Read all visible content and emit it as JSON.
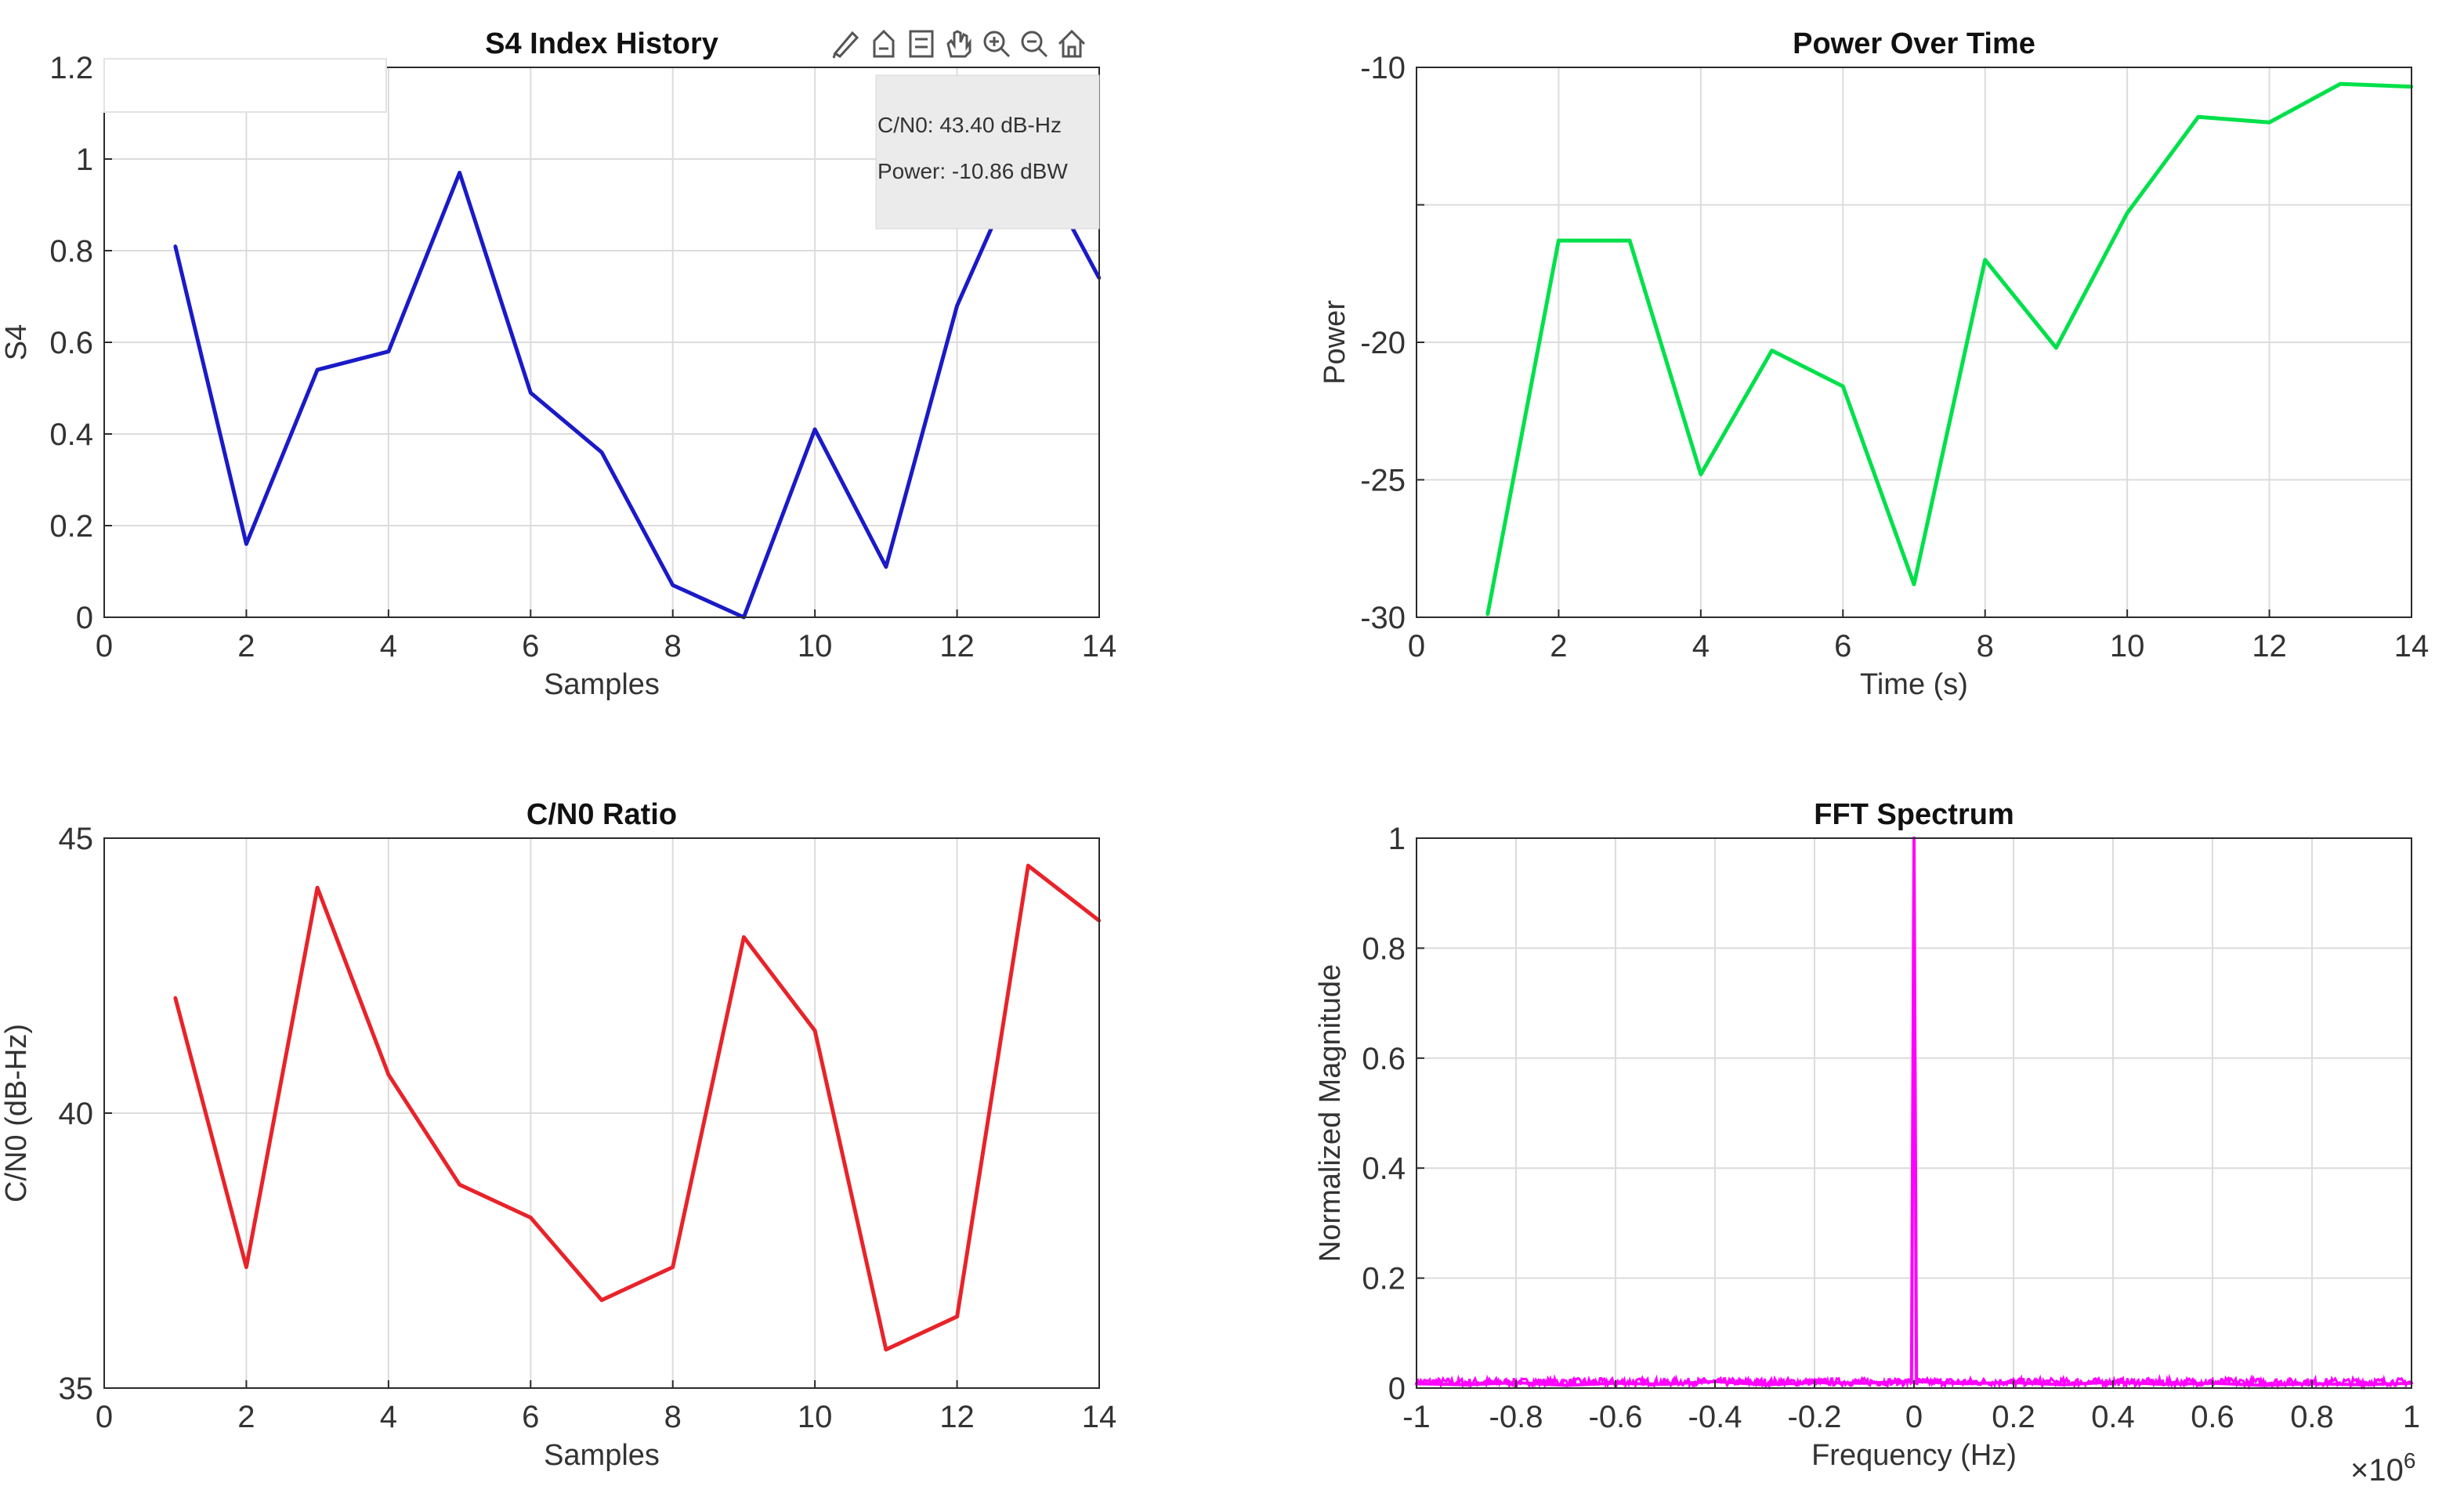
{
  "datatip": {
    "cn0": "C/N0: 43.40 dB-Hz",
    "power": "Power: -10.86 dBW"
  },
  "toolbar": {
    "icons": [
      "brush-icon",
      "data-tips-icon",
      "legend-icon",
      "pan-icon",
      "zoom-in-icon",
      "zoom-out-icon",
      "home-icon"
    ]
  },
  "colors": {
    "s4": "#1a1ac8",
    "power": "#00e04a",
    "cn0": "#e8232a",
    "fft": "#ff00ff"
  },
  "chart_data": [
    {
      "type": "line",
      "title": "S4 Index History",
      "xlabel": "Samples",
      "ylabel": "S4",
      "xlim": [
        0,
        14
      ],
      "ylim": [
        0,
        1.2
      ],
      "xticks": [
        0,
        2,
        4,
        6,
        8,
        10,
        12,
        14
      ],
      "yticks": [
        0,
        0.2,
        0.4,
        0.6,
        0.8,
        1,
        1.2
      ],
      "grid": true,
      "series": [
        {
          "x": [
            1,
            2,
            3,
            4,
            5,
            6,
            7,
            8,
            9,
            10,
            11,
            12,
            13,
            14
          ],
          "values": [
            0.81,
            0.16,
            0.54,
            0.58,
            0.97,
            0.49,
            0.36,
            0.07,
            0.0,
            0.41,
            0.11,
            0.68,
            1.03,
            0.74
          ]
        }
      ]
    },
    {
      "type": "line",
      "title": "Power Over Time",
      "xlabel": "Time (s)",
      "ylabel": "Power",
      "xlim": [
        0,
        14
      ],
      "ylim": [
        -30,
        -10
      ],
      "xticks": [
        0,
        2,
        4,
        6,
        8,
        10,
        12,
        14
      ],
      "yticks": [
        -30,
        -25,
        -20,
        -15,
        -10
      ],
      "yticklabels": [
        "-30",
        "-25",
        "-20",
        "",
        "-10"
      ],
      "grid": true,
      "series": [
        {
          "x": [
            1,
            2,
            3,
            4,
            5,
            6,
            7,
            8,
            9,
            10,
            11,
            12,
            13,
            14
          ],
          "values": [
            -29.9,
            -16.3,
            -16.3,
            -24.8,
            -20.3,
            -21.6,
            -28.8,
            -17.0,
            -20.2,
            -15.3,
            -11.8,
            -12.0,
            -10.6,
            -10.7
          ]
        }
      ]
    },
    {
      "type": "line",
      "title": "C/N0 Ratio",
      "xlabel": "Samples",
      "ylabel": "C/N0 (dB-Hz)",
      "xlim": [
        0,
        14
      ],
      "ylim": [
        35,
        45
      ],
      "xticks": [
        0,
        2,
        4,
        6,
        8,
        10,
        12,
        14
      ],
      "yticks": [
        35,
        40,
        45
      ],
      "grid": true,
      "series": [
        {
          "x": [
            1,
            2,
            3,
            4,
            5,
            6,
            7,
            8,
            9,
            10,
            11,
            12,
            13,
            14
          ],
          "values": [
            42.1,
            37.2,
            44.1,
            40.7,
            38.7,
            38.1,
            36.6,
            37.2,
            43.2,
            41.5,
            35.7,
            36.3,
            44.5,
            43.5
          ]
        }
      ]
    },
    {
      "type": "line",
      "title": "FFT Spectrum",
      "xlabel": "Frequency (Hz)",
      "ylabel": "Normalized Magnitude",
      "xlim": [
        -1,
        1
      ],
      "ylim": [
        0,
        1
      ],
      "xticks": [
        -1,
        -0.8,
        -0.6,
        -0.4,
        -0.2,
        0,
        0.2,
        0.4,
        0.6,
        0.8,
        1
      ],
      "yticks": [
        0,
        0.2,
        0.4,
        0.6,
        0.8,
        1
      ],
      "xscale_label": "×10",
      "xscale_exponent": "6",
      "grid": true,
      "series": [
        {
          "description_of_shape": "",
          "x": [
            -1,
            -0.9,
            -0.8,
            -0.7,
            -0.6,
            -0.5,
            -0.4,
            -0.3,
            -0.2,
            -0.1,
            -0.005,
            0,
            0.005,
            0.1,
            0.2,
            0.3,
            0.4,
            0.5,
            0.6,
            0.7,
            0.8,
            0.9,
            1
          ],
          "values": [
            0.008,
            0.006,
            0.01,
            0.005,
            0.009,
            0.007,
            0.012,
            0.006,
            0.01,
            0.009,
            0.012,
            1.0,
            0.012,
            0.008,
            0.01,
            0.006,
            0.011,
            0.007,
            0.009,
            0.005,
            0.008,
            0.006,
            0.009
          ]
        }
      ]
    }
  ]
}
